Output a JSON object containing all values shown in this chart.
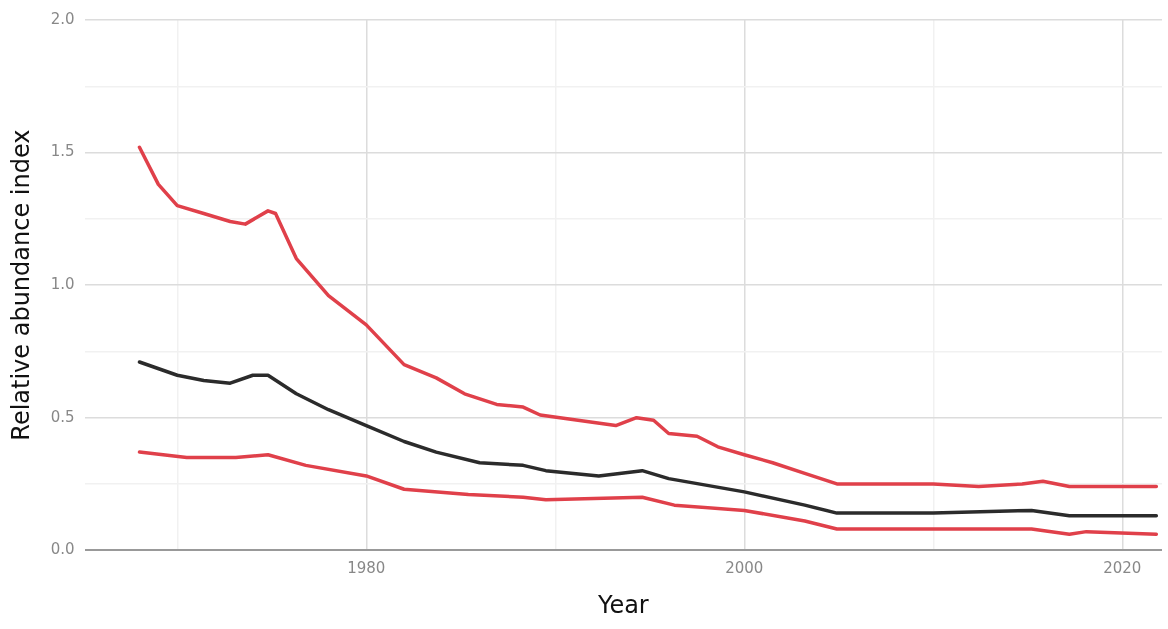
{
  "chart_data": {
    "type": "line",
    "xlabel": "Year",
    "ylabel": "Relative abundance index",
    "xlim": [
      1965.1,
      2022.1
    ],
    "ylim": [
      0,
      2.0
    ],
    "xticks": [
      {
        "value": 1970,
        "label": null
      },
      1980,
      {
        "value": 1990,
        "label": null
      },
      2000,
      {
        "value": 2010,
        "label": null
      },
      2020
    ],
    "yticks": [
      {
        "value": 0,
        "label": "0.0"
      },
      {
        "value": 0.25,
        "label": null
      },
      0.5,
      {
        "value": 0.75,
        "label": null
      },
      {
        "value": 1,
        "label": "1.0"
      },
      {
        "value": 1.25,
        "label": null
      },
      1.5,
      {
        "value": 1.75,
        "label": null
      },
      {
        "value": 2,
        "label": "2.0"
      }
    ],
    "grid": true,
    "line_style": "solid",
    "marker": "none",
    "series": [
      {
        "color": "#e0404a",
        "x": [
          1968,
          1969,
          1970,
          1971.4,
          1972.8,
          1973.6,
          1974.8,
          1975.2,
          1976.3,
          1978,
          1980,
          1982,
          1983.7,
          1985.2,
          1986.9,
          1988.3,
          1989.2,
          1991.2,
          1993.2,
          1994.3,
          1995.2,
          1996,
          1997.5,
          1998.6,
          2000,
          2001.5,
          2003.2,
          2004.9,
          2006.6,
          2010,
          2012.4,
          2014.7,
          2015.8,
          2017.2,
          2018.1,
          2021.8
        ],
        "values": [
          1.52,
          1.38,
          1.3,
          1.27,
          1.24,
          1.23,
          1.28,
          1.27,
          1.1,
          0.96,
          0.85,
          0.7,
          0.65,
          0.59,
          0.55,
          0.54,
          0.51,
          0.49,
          0.47,
          0.5,
          0.49,
          0.44,
          0.43,
          0.39,
          0.36,
          0.33,
          0.29,
          0.25,
          0.25,
          0.25,
          0.24,
          0.25,
          0.26,
          0.24,
          0.24,
          0.24
        ]
      },
      {
        "color": "#2b2b2b",
        "x": [
          1968,
          1970,
          1971.4,
          1972.8,
          1974,
          1974.8,
          1976.3,
          1978,
          1980,
          1982,
          1983.7,
          1986,
          1988.3,
          1989.5,
          1992.3,
          1994.6,
          1996,
          2000,
          2003.2,
          2004.9,
          2010,
          2015.2,
          2017.2,
          2021.8
        ],
        "values": [
          0.71,
          0.66,
          0.64,
          0.63,
          0.66,
          0.66,
          0.59,
          0.53,
          0.47,
          0.41,
          0.37,
          0.33,
          0.32,
          0.3,
          0.28,
          0.3,
          0.27,
          0.22,
          0.17,
          0.14,
          0.14,
          0.15,
          0.13,
          0.13
        ]
      },
      {
        "color": "#e0404a",
        "x": [
          1968,
          1970.5,
          1973.1,
          1974.8,
          1976.8,
          1980,
          1982,
          1985.4,
          1988.3,
          1989.5,
          1994.6,
          1996.3,
          2000,
          2003.2,
          2004.9,
          2010,
          2015.2,
          2017.2,
          2018.1,
          2021.8
        ],
        "values": [
          0.37,
          0.35,
          0.35,
          0.36,
          0.32,
          0.28,
          0.23,
          0.21,
          0.2,
          0.19,
          0.2,
          0.17,
          0.15,
          0.11,
          0.08,
          0.08,
          0.08,
          0.06,
          0.07,
          0.06
        ]
      }
    ]
  }
}
